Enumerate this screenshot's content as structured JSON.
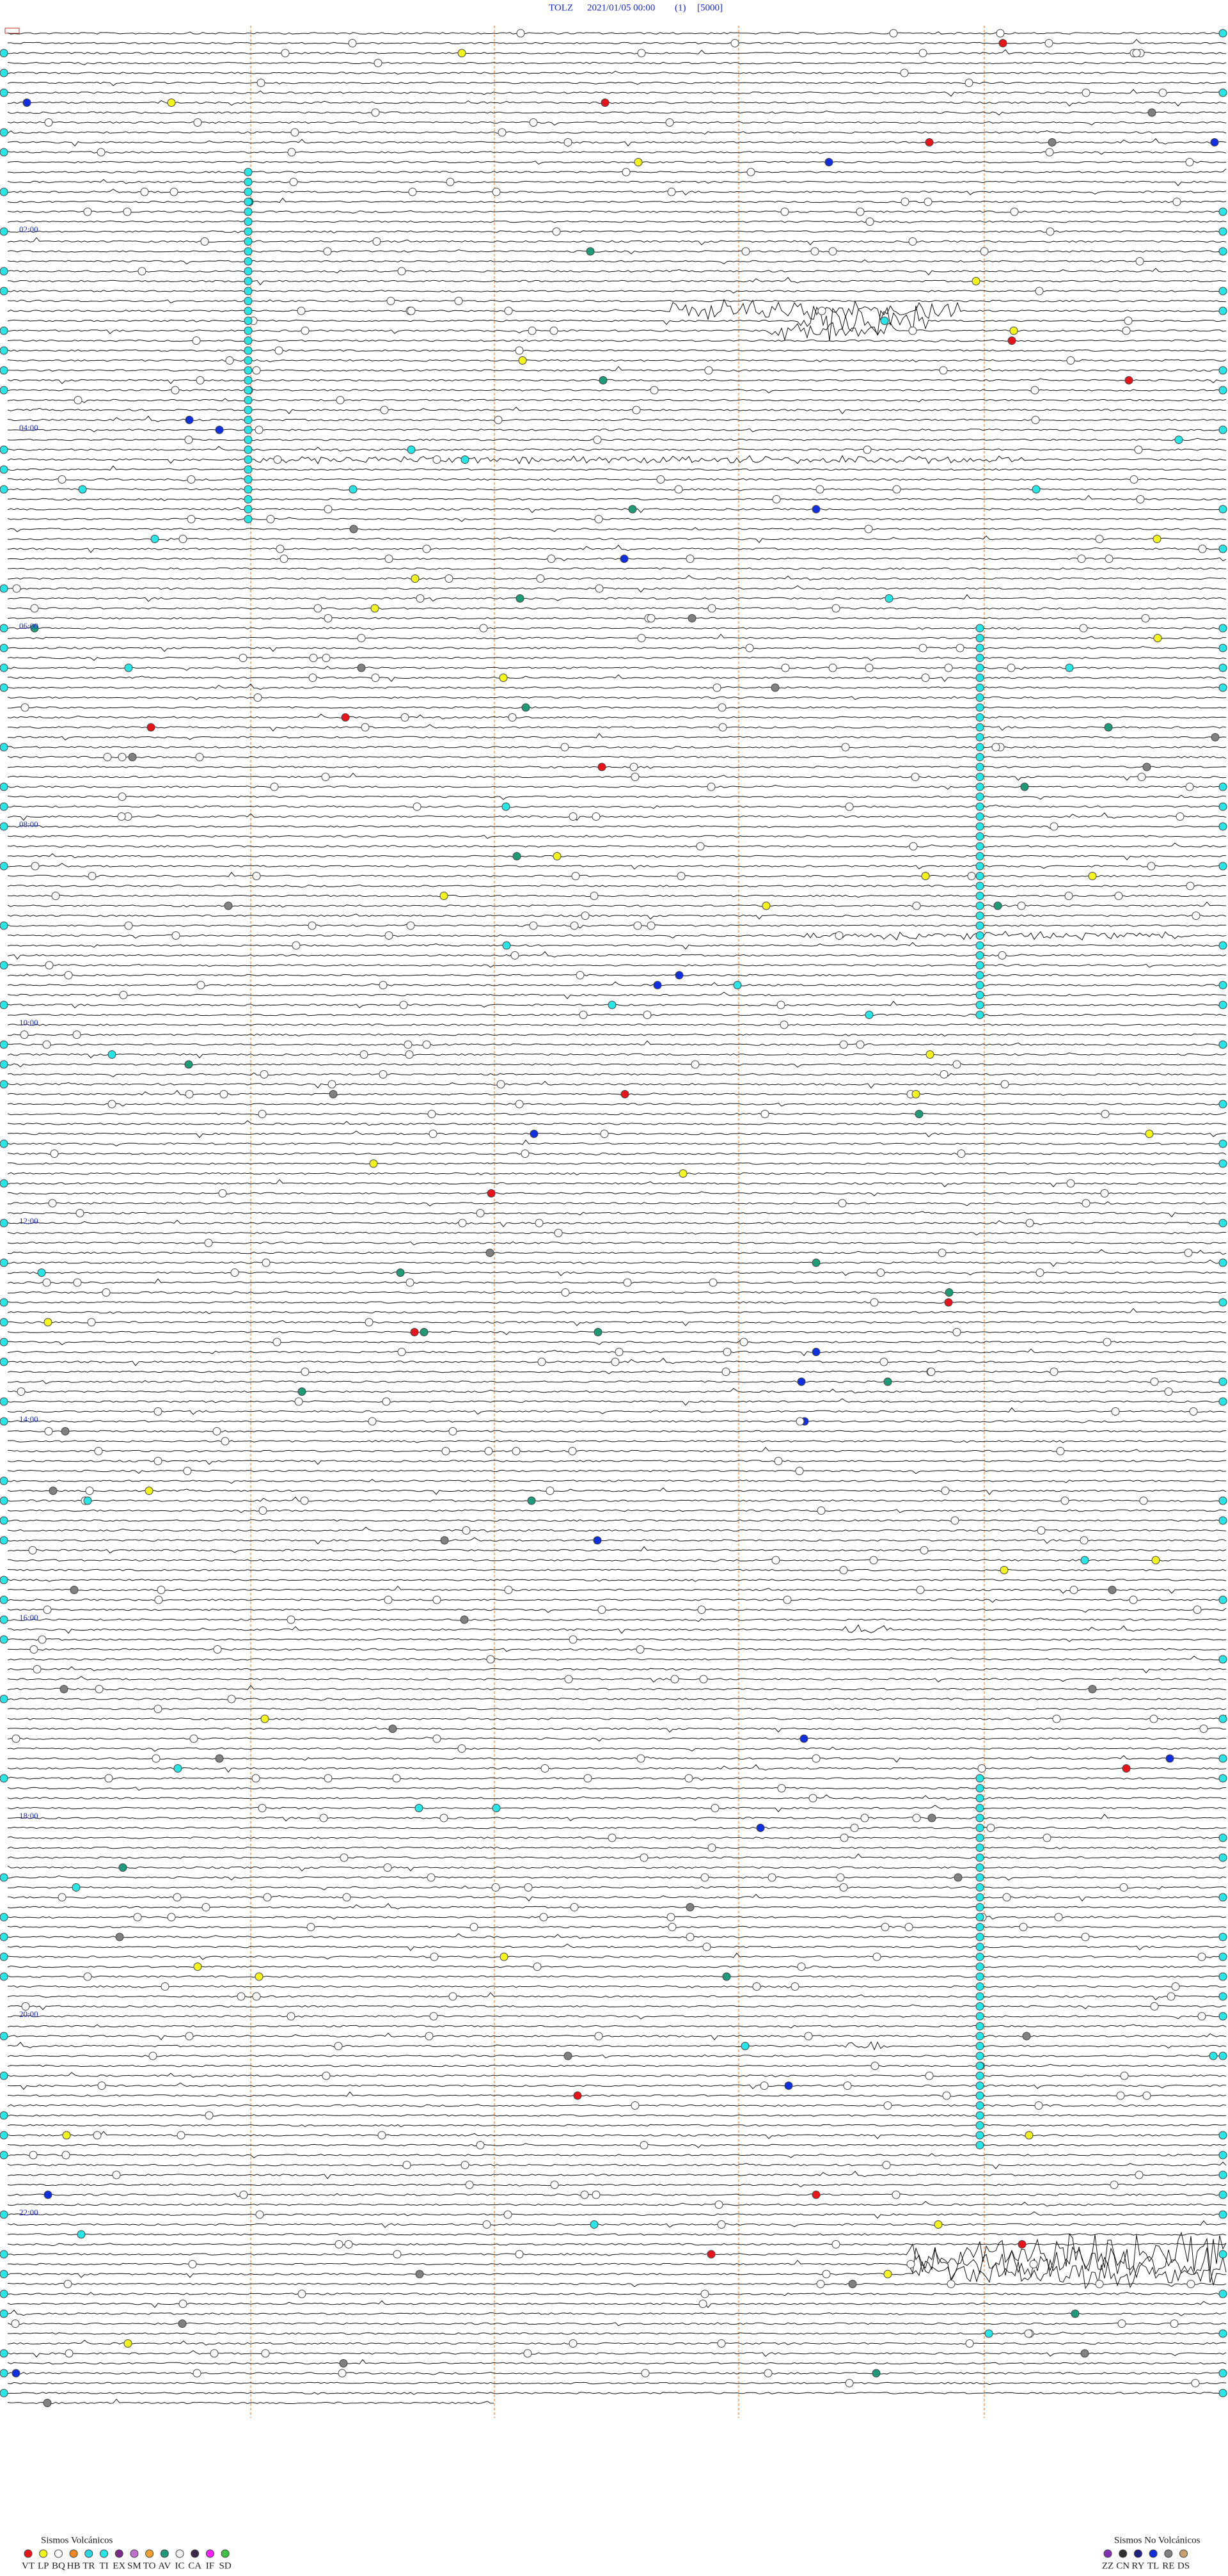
{
  "header": {
    "station": "TOLZ",
    "datetime": "2021/01/05 00:00",
    "channel": "(1)",
    "scale": "[5000]"
  },
  "time_labels": [
    "02:00",
    "04:00",
    "06:00",
    "08:00",
    "10:00",
    "12:00",
    "14:00",
    "16:00",
    "18:00",
    "20:00",
    "22:00"
  ],
  "legend": {
    "volcanic": {
      "title": "Sismos Volcánicos",
      "items": [
        {
          "code": "VT",
          "color": "#e8141c"
        },
        {
          "code": "LP",
          "color": "#f5f51e"
        },
        {
          "code": "BQ",
          "color": "#ffffff"
        },
        {
          "code": "HB",
          "color": "#f08a1e"
        },
        {
          "code": "TR",
          "color": "#2ad6e0"
        },
        {
          "code": "TI",
          "color": "#28e6e6"
        },
        {
          "code": "EX",
          "color": "#7a2a8a"
        },
        {
          "code": "SM",
          "color": "#c070d0"
        },
        {
          "code": "TO",
          "color": "#f0a030"
        },
        {
          "code": "AV",
          "color": "#1e9a78"
        },
        {
          "code": "IC",
          "color": "#f4f4f4"
        },
        {
          "code": "CA",
          "color": "#3a2a4a"
        },
        {
          "code": "IF",
          "color": "#ff20ff"
        },
        {
          "code": "SD",
          "color": "#40c040"
        }
      ]
    },
    "non_volcanic": {
      "title": "Sismos No Volcánicos",
      "items": [
        {
          "code": "ZZ",
          "color": "#8030b0"
        },
        {
          "code": "CN",
          "color": "#303030"
        },
        {
          "code": "RY",
          "color": "#202080"
        },
        {
          "code": "TL",
          "color": "#1030e0"
        },
        {
          "code": "RE",
          "color": "#808080"
        },
        {
          "code": "DS",
          "color": "#c8a070"
        }
      ]
    }
  }
}
